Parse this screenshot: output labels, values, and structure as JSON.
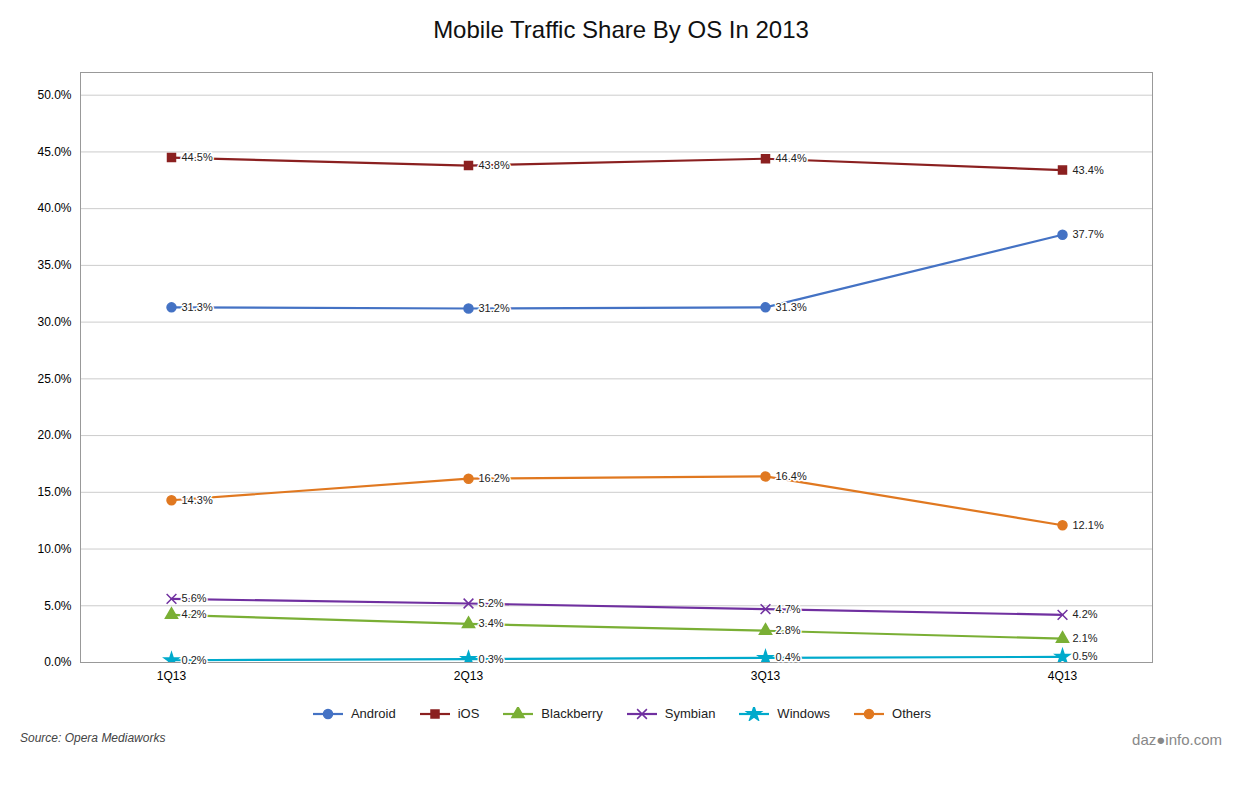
{
  "chart_data": {
    "type": "line",
    "title": "Mobile Traffic Share By OS In 2013",
    "categories": [
      "1Q13",
      "2Q13",
      "3Q13",
      "4Q13"
    ],
    "series": [
      {
        "name": "Android",
        "color": "#4472C4",
        "marker": "circle",
        "values": [
          31.3,
          31.2,
          31.3,
          37.7
        ],
        "value_labels": [
          "31.3%",
          "31.2%",
          "31.3%",
          "37.7%"
        ]
      },
      {
        "name": "iOS",
        "color": "#8B2020",
        "marker": "square",
        "values": [
          44.5,
          43.8,
          44.4,
          43.4
        ],
        "value_labels": [
          "44.5%",
          "43.8%",
          "44.4%",
          "43.4%"
        ]
      },
      {
        "name": "Blackberry",
        "color": "#7AAF35",
        "marker": "triangle",
        "values": [
          4.2,
          3.4,
          2.8,
          2.1
        ],
        "value_labels": [
          "4.2%",
          "3.4%",
          "2.8%",
          "2.1%"
        ]
      },
      {
        "name": "Symbian",
        "color": "#7030A0",
        "marker": "times",
        "values": [
          5.6,
          5.2,
          4.7,
          4.2
        ],
        "value_labels": [
          "5.6%",
          "5.2%",
          "4.7%",
          "4.2%"
        ]
      },
      {
        "name": "Windows",
        "color": "#00AACC",
        "marker": "star",
        "values": [
          0.2,
          0.3,
          0.4,
          0.5
        ],
        "value_labels": [
          "0.2%",
          "0.3%",
          "0.4%",
          "0.5%"
        ]
      },
      {
        "name": "Others",
        "color": "#E07820",
        "marker": "circle",
        "values": [
          14.3,
          16.2,
          16.4,
          12.1
        ],
        "value_labels": [
          "14.3%",
          "16.2%",
          "16.4%",
          "12.1%"
        ]
      }
    ],
    "ylim": [
      0,
      52
    ],
    "yticks": [
      {
        "value": 0,
        "label": "0.0%"
      },
      {
        "value": 5,
        "label": "5.0%"
      },
      {
        "value": 10,
        "label": "10.0%"
      },
      {
        "value": 15,
        "label": "15.0%"
      },
      {
        "value": 20,
        "label": "20.0%"
      },
      {
        "value": 25,
        "label": "25.0%"
      },
      {
        "value": 30,
        "label": "30.0%"
      },
      {
        "value": 35,
        "label": "35.0%"
      },
      {
        "value": 40,
        "label": "40.0%"
      },
      {
        "value": 45,
        "label": "45.0%"
      },
      {
        "value": 50,
        "label": "50.0%"
      }
    ],
    "grid": true,
    "legend": "bottom",
    "data_labels": true,
    "annotations": [
      "Source: Opera Mediaworks",
      "daz●info.com"
    ]
  }
}
